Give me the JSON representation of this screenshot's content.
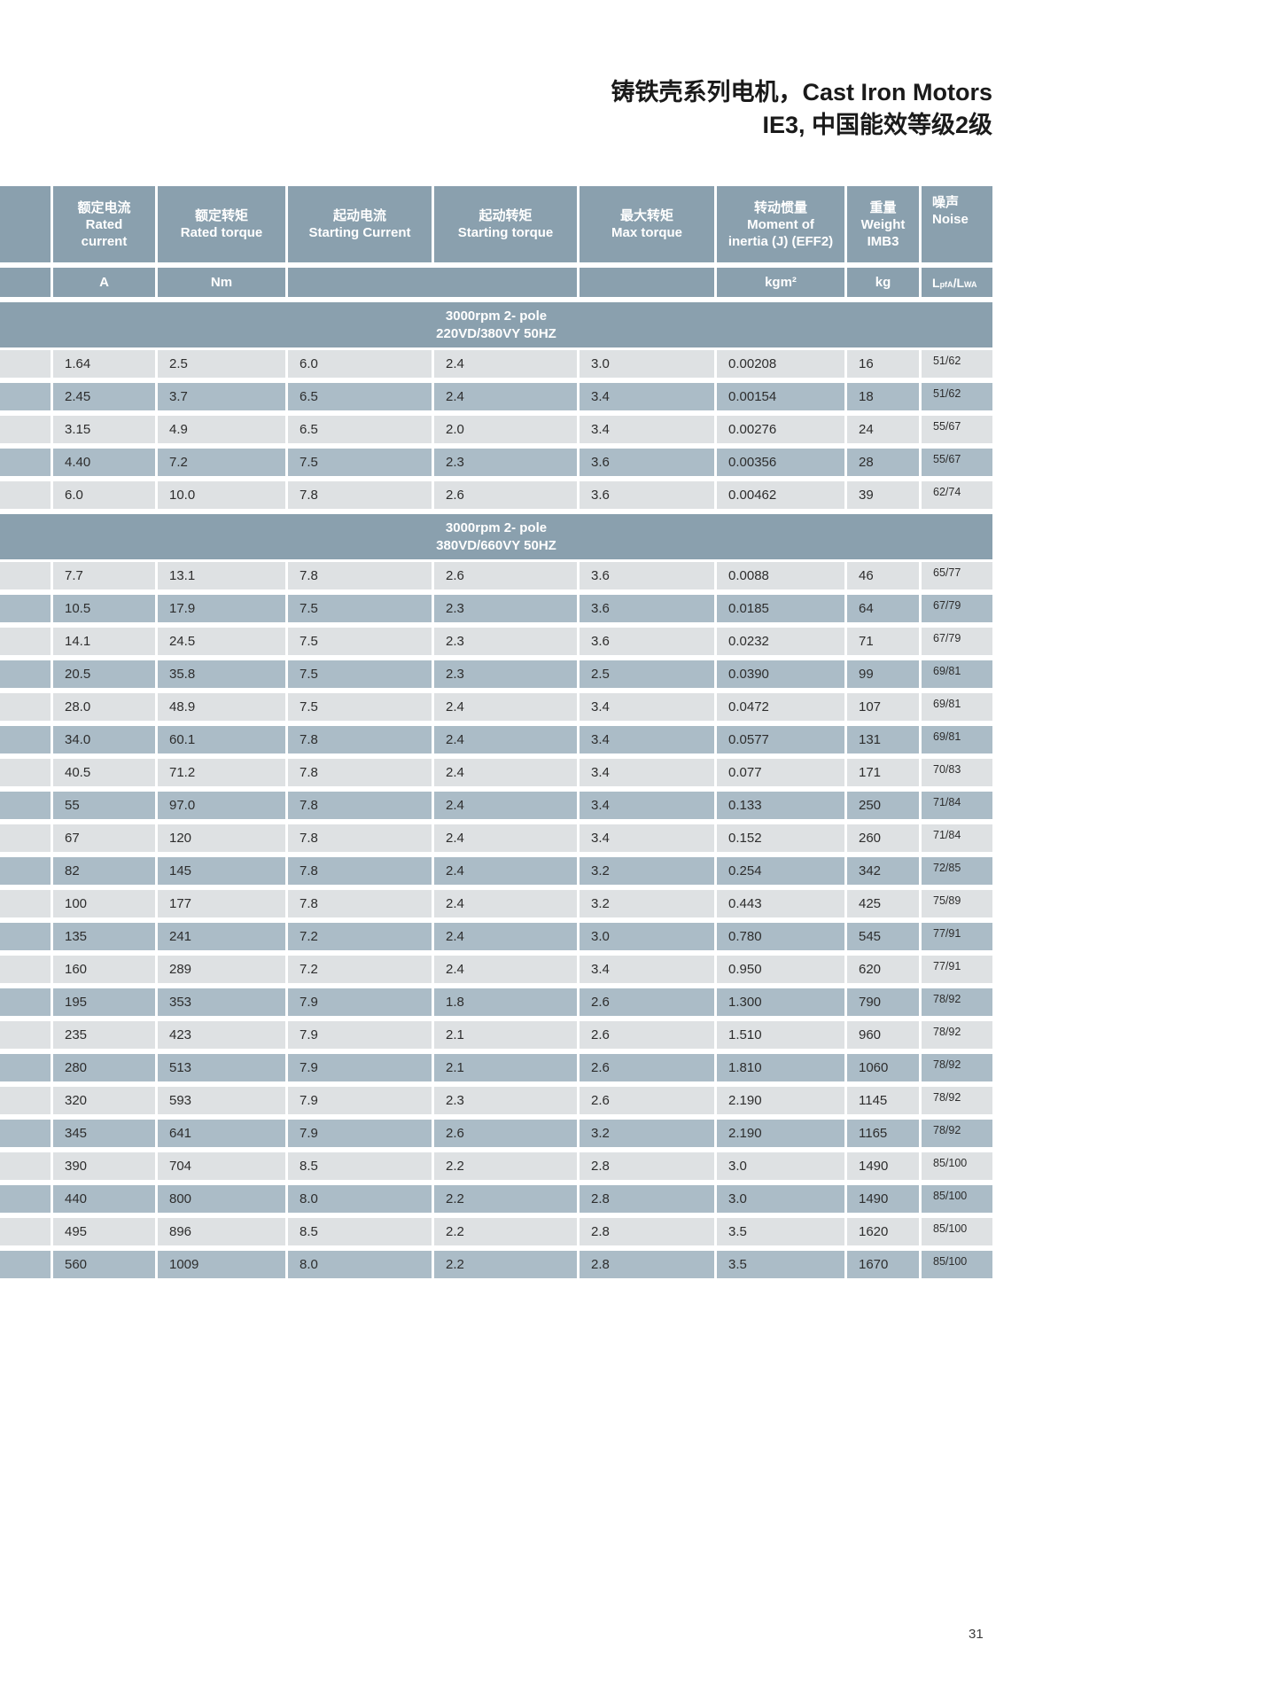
{
  "page": {
    "title_line1": "铸铁壳系列电机，Cast Iron Motors",
    "title_line2": "IE3, 中国能效等级2级",
    "page_number": "31"
  },
  "colors": {
    "header_bg": "#8aa0ae",
    "row_dark": "#abbcc7",
    "row_light": "#dee1e3",
    "text_dark": "#2d2d2d"
  },
  "table": {
    "columns": [
      {
        "label": ""
      },
      {
        "label": "额定电流\nRated\ncurrent",
        "unit": "A"
      },
      {
        "label": "额定转矩\nRated torque",
        "unit": "Nm"
      },
      {
        "label": "起动电流\nStarting Current",
        "unit": ""
      },
      {
        "label": "起动转矩\nStarting torque",
        "unit": ""
      },
      {
        "label": "最大转矩\nMax torque",
        "unit": ""
      },
      {
        "label": "转动惯量\nMoment  of\ninertia (J) (EFF2)",
        "unit": "kgm²"
      },
      {
        "label": "重量\nWeight\nIMB3",
        "unit": "kg"
      },
      {
        "label": "噪声\nNoise"
      }
    ],
    "noise_unit": {
      "b1": "L",
      "s1": "pfA",
      "b2": "/L",
      "s2": "WA"
    },
    "sections": [
      {
        "header": "3000rpm 2- pole\n220VD/380VY  50HZ",
        "rows": [
          [
            "1.64",
            "2.5",
            "6.0",
            "2.4",
            "3.0",
            "0.00208",
            "16",
            "51/62"
          ],
          [
            "2.45",
            "3.7",
            "6.5",
            "2.4",
            "3.4",
            "0.00154",
            "18",
            "51/62"
          ],
          [
            "3.15",
            "4.9",
            "6.5",
            "2.0",
            "3.4",
            "0.00276",
            "24",
            "55/67"
          ],
          [
            "4.40",
            "7.2",
            "7.5",
            "2.3",
            "3.6",
            "0.00356",
            "28",
            "55/67"
          ],
          [
            "6.0",
            "10.0",
            "7.8",
            "2.6",
            "3.6",
            "0.00462",
            "39",
            "62/74"
          ]
        ]
      },
      {
        "header": "3000rpm 2- pole\n380VD/660VY  50HZ",
        "rows": [
          [
            "7.7",
            "13.1",
            "7.8",
            "2.6",
            "3.6",
            "0.0088",
            "46",
            "65/77"
          ],
          [
            "10.5",
            "17.9",
            "7.5",
            "2.3",
            "3.6",
            "0.0185",
            "64",
            "67/79"
          ],
          [
            "14.1",
            "24.5",
            "7.5",
            "2.3",
            "3.6",
            "0.0232",
            "71",
            "67/79"
          ],
          [
            "20.5",
            "35.8",
            "7.5",
            "2.3",
            "2.5",
            "0.0390",
            "99",
            "69/81"
          ],
          [
            "28.0",
            "48.9",
            "7.5",
            "2.4",
            "3.4",
            "0.0472",
            "107",
            "69/81"
          ],
          [
            "34.0",
            "60.1",
            "7.8",
            "2.4",
            "3.4",
            "0.0577",
            "131",
            "69/81"
          ],
          [
            "40.5",
            "71.2",
            "7.8",
            "2.4",
            "3.4",
            "0.077",
            "171",
            "70/83"
          ],
          [
            "55",
            "97.0",
            "7.8",
            "2.4",
            "3.4",
            "0.133",
            "250",
            "71/84"
          ],
          [
            "67",
            "120",
            "7.8",
            "2.4",
            "3.4",
            "0.152",
            "260",
            "71/84"
          ],
          [
            "82",
            "145",
            "7.8",
            "2.4",
            "3.2",
            "0.254",
            "342",
            "72/85"
          ],
          [
            "100",
            "177",
            "7.8",
            "2.4",
            "3.2",
            "0.443",
            "425",
            "75/89"
          ],
          [
            "135",
            "241",
            "7.2",
            "2.4",
            "3.0",
            "0.780",
            "545",
            "77/91"
          ],
          [
            "160",
            "289",
            "7.2",
            "2.4",
            "3.4",
            "0.950",
            "620",
            "77/91"
          ],
          [
            "195",
            "353",
            "7.9",
            "1.8",
            "2.6",
            "1.300",
            "790",
            "78/92"
          ],
          [
            "235",
            "423",
            "7.9",
            "2.1",
            "2.6",
            "1.510",
            "960",
            "78/92"
          ],
          [
            "280",
            "513",
            "7.9",
            "2.1",
            "2.6",
            "1.810",
            "1060",
            "78/92"
          ],
          [
            "320",
            "593",
            "7.9",
            "2.3",
            "2.6",
            "2.190",
            "1145",
            "78/92"
          ],
          [
            "345",
            "641",
            "7.9",
            "2.6",
            "3.2",
            "2.190",
            "1165",
            "78/92"
          ],
          [
            "390",
            "704",
            "8.5",
            "2.2",
            "2.8",
            "3.0",
            "1490",
            "85/100"
          ],
          [
            "440",
            "800",
            "8.0",
            "2.2",
            "2.8",
            "3.0",
            "1490",
            "85/100"
          ],
          [
            "495",
            "896",
            "8.5",
            "2.2",
            "2.8",
            "3.5",
            "1620",
            "85/100"
          ],
          [
            "560",
            "1009",
            "8.0",
            "2.2",
            "2.8",
            "3.5",
            "1670",
            "85/100"
          ]
        ]
      }
    ]
  }
}
